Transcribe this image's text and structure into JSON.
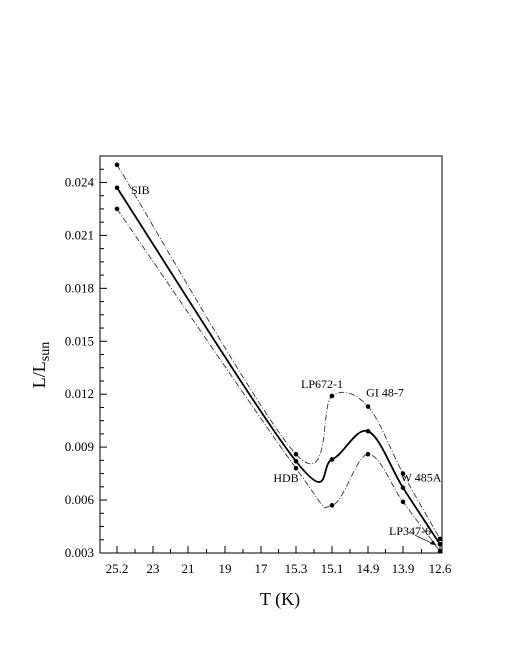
{
  "chart_data": {
    "type": "line",
    "title": "",
    "xlabel": "T (K)",
    "ylabel_main": "L/L",
    "ylabel_sub": "sun",
    "ylim": [
      0.003,
      0.0255
    ],
    "x_categories": [
      "25.2",
      "23",
      "21",
      "19",
      "17",
      "15.3",
      "15.1",
      "14.9",
      "13.9",
      "12.6"
    ],
    "y_ticks": [
      0.003,
      0.006,
      0.009,
      0.012,
      0.015,
      0.018,
      0.021,
      0.024
    ],
    "y_tick_labels": [
      "0.003",
      "0.006",
      "0.009",
      "0.012",
      "0.015",
      "0.018",
      "0.021",
      "0.024"
    ],
    "grid": false,
    "series": [
      {
        "style": "solid-thick",
        "points": [
          [
            "25.2",
            0.0237
          ],
          [
            "15.3",
            0.0082
          ],
          [
            "15.1",
            0.0083
          ],
          [
            "14.9",
            0.0099
          ],
          [
            "13.9",
            0.0067
          ],
          [
            "12.6",
            0.0035
          ]
        ]
      },
      {
        "style": "dash-dot-upper",
        "points": [
          [
            "25.2",
            0.025
          ],
          [
            "15.3",
            0.0086
          ],
          [
            "15.1",
            0.0119
          ],
          [
            "14.9",
            0.0113
          ],
          [
            "13.9",
            0.0075
          ],
          [
            "12.6",
            0.0038
          ]
        ]
      },
      {
        "style": "dash-dot-lower",
        "points": [
          [
            "25.2",
            0.0225
          ],
          [
            "15.3",
            0.0078
          ],
          [
            "15.1",
            0.0057
          ],
          [
            "14.9",
            0.0086
          ],
          [
            "13.9",
            0.0059
          ],
          [
            "12.6",
            0.0031
          ]
        ]
      }
    ],
    "annotations": [
      {
        "text": "SIB",
        "x": "25.2",
        "y": 0.0237
      },
      {
        "text": "HDB",
        "x": "15.3",
        "y": 0.0077
      },
      {
        "text": "LP672-1",
        "x": "15.1",
        "y": 0.0119
      },
      {
        "text": "GI 48-7",
        "x": "14.9",
        "y": 0.0113
      },
      {
        "text": "W 485A",
        "x": "13.9",
        "y": 0.0075
      },
      {
        "text": "LP347-6",
        "x": "12.6",
        "y": 0.0035
      }
    ]
  }
}
